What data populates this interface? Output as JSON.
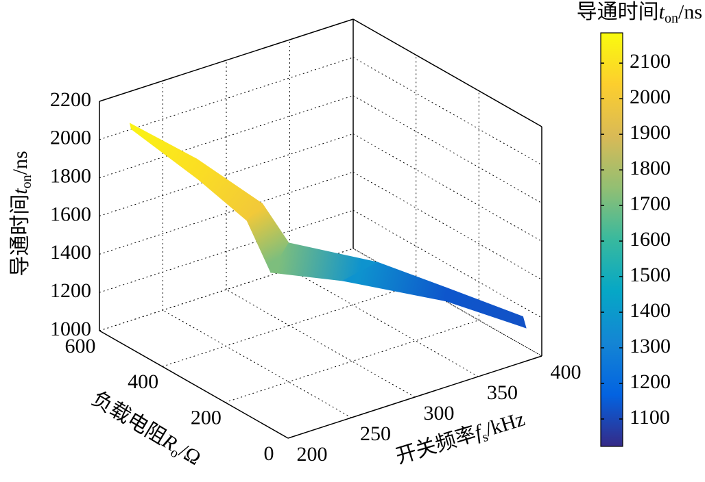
{
  "chart_data": {
    "type": "surface",
    "xlabel": [
      "开关频率",
      "f",
      "s",
      "/kHz"
    ],
    "ylabel": [
      "负载电阻",
      "R",
      "o",
      "/Ω"
    ],
    "zlabel": [
      "导通时间",
      "t",
      "on",
      "/ns"
    ],
    "colorbar_title": [
      "导通时间",
      "t",
      "on",
      "/ns"
    ],
    "x": [
      [
        201,
        215,
        222,
        263,
        358,
        392,
        400
      ],
      [
        200,
        201,
        206,
        206,
        282,
        375,
        400
      ]
    ],
    "y": [
      [
        507,
        351,
        170,
        252,
        353,
        273,
        60
      ],
      [
        499,
        289,
        155,
        79,
        157,
        204,
        50
      ]
    ],
    "z": [
      [
        2170,
        2100,
        2020,
        1650,
        1250,
        1120,
        1150
      ],
      [
        2150,
        2080,
        1980,
        1780,
        1500,
        1150,
        1100
      ]
    ],
    "xlim": [
      200,
      400
    ],
    "ylim": [
      0,
      600
    ],
    "zlim": [
      1000,
      2200
    ],
    "xticks": [
      200,
      250,
      300,
      350,
      400
    ],
    "yticks": [
      0,
      200,
      400,
      600
    ],
    "zticks": [
      1000,
      1200,
      1400,
      1600,
      1800,
      2000,
      2200
    ],
    "clim": [
      1023,
      2185
    ],
    "cticks": [
      1100,
      1200,
      1300,
      1400,
      1500,
      1600,
      1700,
      1800,
      1900,
      2000,
      2100
    ],
    "colormap": "parula",
    "grid": true
  }
}
